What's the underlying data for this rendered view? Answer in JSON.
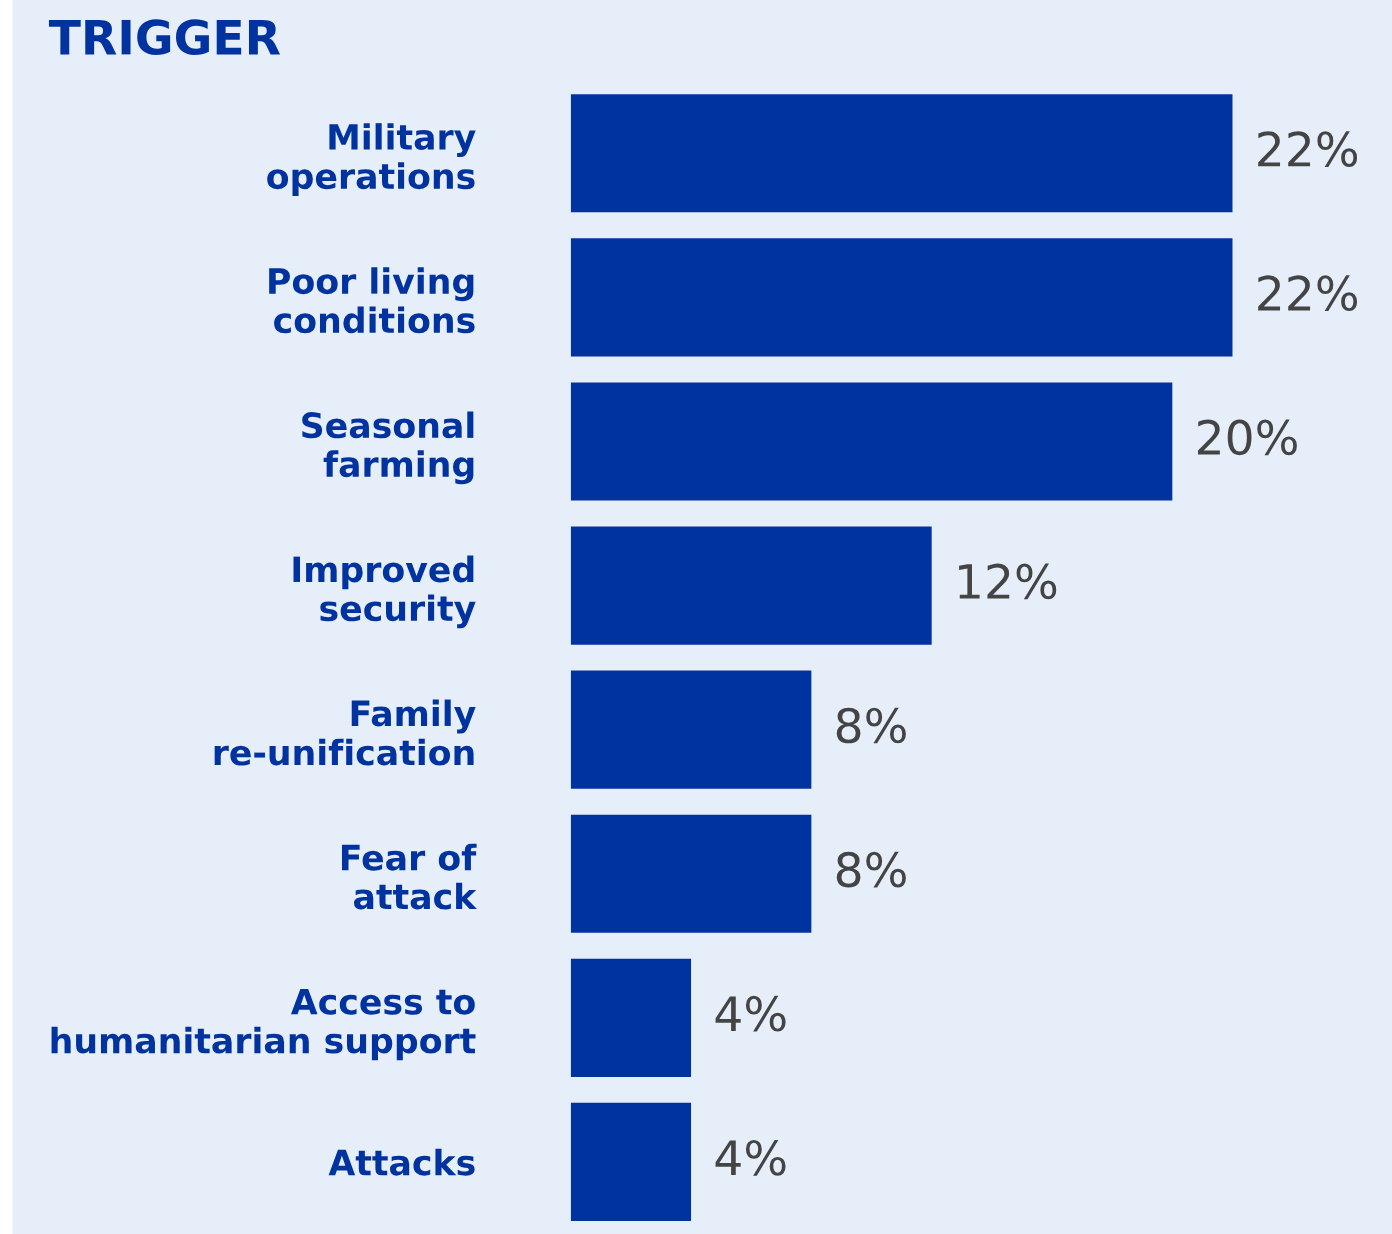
{
  "chart_data": {
    "type": "bar",
    "orientation": "horizontal",
    "title": "TRIGGER",
    "categories": [
      "Military\noperations",
      "Poor living\nconditions",
      "Seasonal\nfarming",
      "Improved\nsecurity",
      "Family\nre-unification",
      "Fear of\nattack",
      "Access to\nhumanitarian support",
      "Attacks"
    ],
    "values": [
      22,
      22,
      20,
      12,
      8,
      8,
      4,
      4
    ],
    "value_labels": [
      "22%",
      "22%",
      "20%",
      "12%",
      "8%",
      "8%",
      "4%",
      "4%"
    ],
    "color": "#0033a0"
  }
}
